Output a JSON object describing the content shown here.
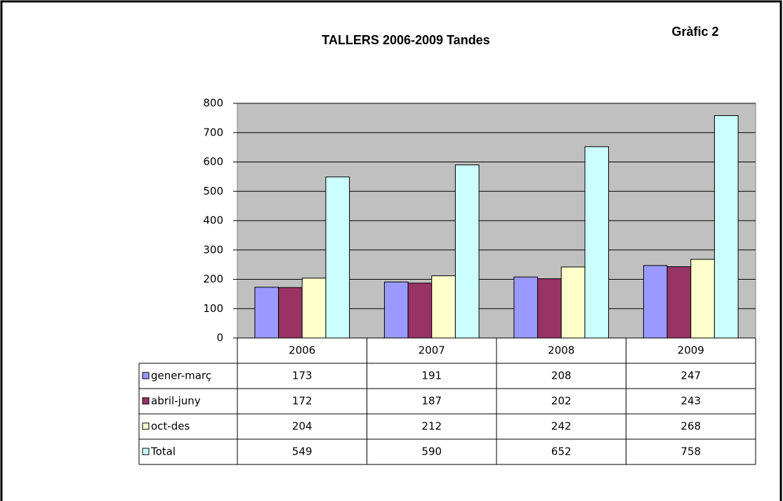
{
  "chart_data": {
    "type": "bar",
    "title": "TALLERS 2006-2009 Tandes",
    "subtitle": "Gràfic 2",
    "categories": [
      "2006",
      "2007",
      "2008",
      "2009"
    ],
    "series": [
      {
        "name": "gener-març",
        "color": "#9999ff",
        "values": [
          173,
          191,
          208,
          247
        ]
      },
      {
        "name": "abril-juny",
        "color": "#993366",
        "values": [
          172,
          187,
          202,
          243
        ]
      },
      {
        "name": "oct-des",
        "color": "#ffffcc",
        "values": [
          204,
          212,
          242,
          268
        ]
      },
      {
        "name": "Total",
        "color": "#ccffff",
        "values": [
          549,
          590,
          652,
          758
        ]
      }
    ],
    "ylim": [
      0,
      800
    ],
    "yticks": [
      0,
      100,
      200,
      300,
      400,
      500,
      600,
      700,
      800
    ],
    "grid": true,
    "plot_background": "#c0c0c0"
  }
}
